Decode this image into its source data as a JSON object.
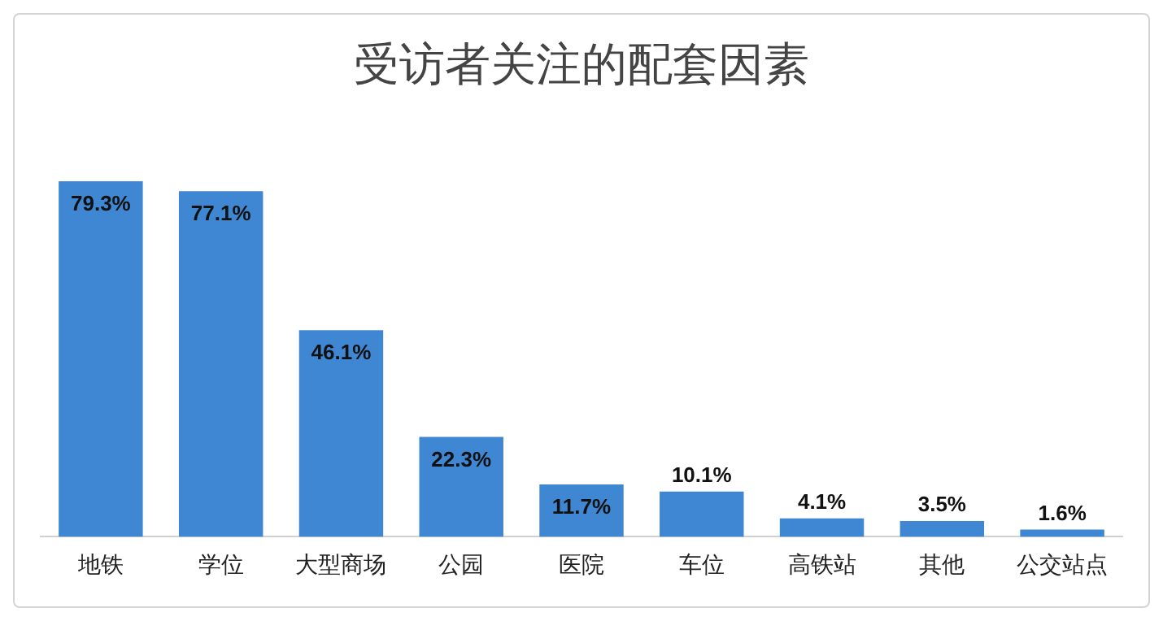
{
  "chart_data": {
    "type": "bar",
    "title": "受访者关注的配套因素",
    "categories": [
      "地铁",
      "学位",
      "大型商场",
      "公园",
      "医院",
      "车位",
      "高铁站",
      "其他",
      "公交站点"
    ],
    "values": [
      79.3,
      77.1,
      46.1,
      22.3,
      11.7,
      10.1,
      4.1,
      3.5,
      1.6
    ],
    "value_labels": [
      "79.3%",
      "77.1%",
      "46.1%",
      "22.3%",
      "11.7%",
      "10.1%",
      "4.1%",
      "3.5%",
      "1.6%"
    ],
    "color": "#3f87d2",
    "grid": false,
    "legend": false
  }
}
